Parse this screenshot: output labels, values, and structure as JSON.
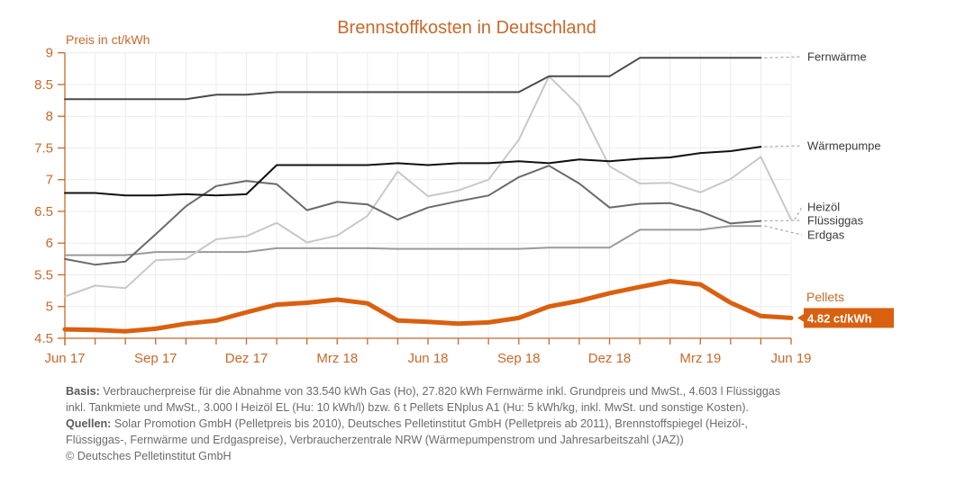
{
  "chart_data": {
    "type": "line",
    "title": "Brennstoffkosten in Deutschland",
    "ylabel": "Preis in ct/kWh",
    "xlabel": "",
    "ylim": [
      4.5,
      9
    ],
    "yticks": [
      "4.5",
      "5",
      "5.5",
      "6",
      "6.5",
      "7",
      "7.5",
      "8",
      "8.5",
      "9"
    ],
    "ytick_values": [
      4.5,
      5,
      5.5,
      6,
      6.5,
      7,
      7.5,
      8,
      8.5,
      9
    ],
    "x": [
      "Jun 17",
      "Jul 17",
      "Aug 17",
      "Sep 17",
      "Okt 17",
      "Nov 17",
      "Dez 17",
      "Jan 18",
      "Feb 18",
      "Mrz 18",
      "Apr 18",
      "Mai 18",
      "Jun 18",
      "Jul 18",
      "Aug 18",
      "Sep 18",
      "Okt 18",
      "Nov 18",
      "Dez 18",
      "Jan 19",
      "Feb 19",
      "Mrz 19",
      "Apr 19",
      "Mai 19",
      "Jun 19"
    ],
    "xtick_labels": [
      {
        "index": 0,
        "label": "Jun 17"
      },
      {
        "index": 3,
        "label": "Sep 17"
      },
      {
        "index": 6,
        "label": "Dez 17"
      },
      {
        "index": 9,
        "label": "Mrz 18"
      },
      {
        "index": 12,
        "label": "Jun 18"
      },
      {
        "index": 15,
        "label": "Sep 18"
      },
      {
        "index": 18,
        "label": "Dez 18"
      },
      {
        "index": 21,
        "label": "Mrz 19"
      },
      {
        "index": 24,
        "label": "Jun 19"
      }
    ],
    "grid": true,
    "legend": "right-end-labels",
    "series": [
      {
        "name": "Fernwärme",
        "color": "#4a4a4a",
        "values": [
          8.27,
          8.27,
          8.27,
          8.27,
          8.27,
          8.34,
          8.34,
          8.38,
          8.38,
          8.38,
          8.38,
          8.38,
          8.38,
          8.38,
          8.38,
          8.38,
          8.63,
          8.63,
          8.63,
          8.92,
          8.92,
          8.92,
          8.92,
          8.92,
          null
        ]
      },
      {
        "name": "Wärmepumpe",
        "color": "#111111",
        "values": [
          6.79,
          6.79,
          6.75,
          6.75,
          6.77,
          6.75,
          6.77,
          7.23,
          7.23,
          7.23,
          7.23,
          7.26,
          7.23,
          7.26,
          7.26,
          7.29,
          7.26,
          7.32,
          7.29,
          7.33,
          7.35,
          7.42,
          7.45,
          7.52,
          null
        ]
      },
      {
        "name": "Heizöl",
        "color": "#c8c8c8",
        "values": [
          5.16,
          5.33,
          5.29,
          5.73,
          5.75,
          6.06,
          6.11,
          6.32,
          6.01,
          6.12,
          6.43,
          7.13,
          6.74,
          6.83,
          7.0,
          7.63,
          8.63,
          8.16,
          7.21,
          6.94,
          6.95,
          6.8,
          7.01,
          7.36,
          6.37
        ]
      },
      {
        "name": "Flüssiggas",
        "color": "#6a6a6a",
        "values": [
          5.75,
          5.66,
          5.71,
          6.14,
          6.58,
          6.9,
          6.98,
          6.93,
          6.52,
          6.65,
          6.61,
          6.37,
          6.56,
          6.66,
          6.75,
          7.04,
          7.22,
          6.94,
          6.56,
          6.62,
          6.63,
          6.5,
          6.31,
          6.35,
          null
        ]
      },
      {
        "name": "Erdgas",
        "color": "#9a9a9a",
        "values": [
          5.81,
          5.81,
          5.81,
          5.86,
          5.86,
          5.86,
          5.86,
          5.92,
          5.92,
          5.92,
          5.92,
          5.91,
          5.91,
          5.91,
          5.91,
          5.91,
          5.93,
          5.93,
          5.93,
          6.21,
          6.21,
          6.21,
          6.27,
          6.27,
          null
        ]
      },
      {
        "name": "Pellets",
        "color": "#d9600f",
        "values": [
          4.64,
          4.63,
          4.61,
          4.65,
          4.73,
          4.78,
          4.91,
          5.03,
          5.06,
          5.11,
          5.05,
          4.78,
          4.76,
          4.73,
          4.75,
          4.82,
          5.0,
          5.09,
          5.21,
          5.31,
          5.4,
          5.35,
          5.06,
          4.85,
          4.82
        ]
      }
    ],
    "annotations": {
      "pellets_label": "Pellets",
      "pellets_value": "4.82 ct/kWh"
    }
  },
  "footer": {
    "basis_label": "Basis:",
    "basis_text": " Verbraucherpreise für die Abnahme von 33.540 kWh Gas (Ho), 27.820 kWh Fernwärme inkl. Grundpreis und MwSt., 4.603 l Flüssiggas inkl. Tankmiete und MwSt., 3.000 l Heizöl EL (Hu: 10 kWh/l) bzw. 6 t Pellets ENplus A1 (Hu: 5 kWh/kg, inkl. MwSt. und sonstige Kosten). ",
    "sources_label": "Quellen:",
    "sources_text": " Solar Promotion GmbH (Pelletpreis bis 2010), Deutsches Pelletinstitut GmbH (Pelletpreis ab 2011), Brennstoffspiegel (Heizöl-, Flüssiggas-, Fernwärme und Erdgaspreise), Verbraucherzentrale NRW (Wärmepumpenstrom und Jahresarbeitszahl (JAZ))",
    "copyright": "© Deutsches Pelletinstitut GmbH"
  }
}
